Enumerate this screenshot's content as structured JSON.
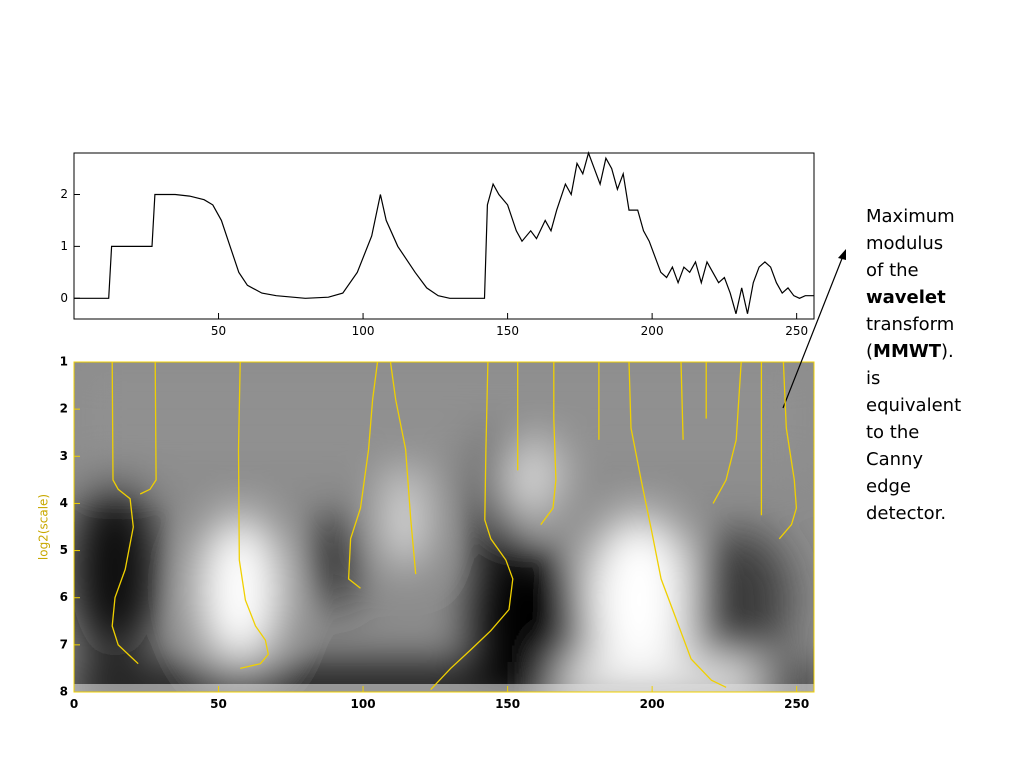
{
  "chart_data": [
    {
      "type": "line",
      "color": "#000000",
      "x": [
        0,
        12,
        13,
        27,
        28,
        35,
        40,
        45,
        48,
        51,
        54,
        57,
        60,
        65,
        70,
        80,
        88,
        93,
        98,
        103,
        106,
        108,
        112,
        118,
        122,
        126,
        130,
        142,
        143,
        145,
        147,
        150,
        153,
        155,
        158,
        160,
        163,
        165,
        167,
        170,
        172,
        174,
        176,
        178,
        180,
        182,
        184,
        186,
        188,
        190,
        192,
        195,
        197,
        199,
        201,
        203,
        205,
        207,
        209,
        211,
        213,
        215,
        217,
        219,
        221,
        223,
        225,
        227,
        229,
        231,
        233,
        235,
        237,
        239,
        241,
        243,
        245,
        247,
        249,
        251,
        253,
        256
      ],
      "values": [
        0,
        0,
        1,
        1,
        2,
        2,
        1.97,
        1.9,
        1.8,
        1.5,
        1.0,
        0.5,
        0.25,
        0.1,
        0.05,
        0,
        0.02,
        0.1,
        0.5,
        1.2,
        2.0,
        1.5,
        1.0,
        0.5,
        0.2,
        0.05,
        0,
        0,
        1.8,
        2.2,
        2.0,
        1.8,
        1.3,
        1.1,
        1.3,
        1.15,
        1.5,
        1.3,
        1.7,
        2.2,
        2.0,
        2.6,
        2.4,
        2.8,
        2.5,
        2.2,
        2.7,
        2.5,
        2.1,
        2.4,
        1.7,
        1.7,
        1.3,
        1.1,
        0.8,
        0.5,
        0.4,
        0.6,
        0.3,
        0.6,
        0.5,
        0.7,
        0.3,
        0.7,
        0.5,
        0.3,
        0.4,
        0.1,
        -0.3,
        0.2,
        -0.3,
        0.3,
        0.6,
        0.7,
        0.6,
        0.3,
        0.1,
        0.2,
        0.05,
        0,
        0.05,
        0.05
      ],
      "xlim": [
        0,
        256
      ],
      "xticks": [
        50,
        100,
        150,
        200,
        250
      ],
      "ylim": [
        -0.4,
        2.8
      ],
      "yticks": [
        0,
        1,
        2
      ]
    },
    {
      "type": "maxima",
      "ylabel": "log2(scale)",
      "yreverse": true,
      "color": "#f0d000",
      "xlim": [
        0,
        256
      ],
      "xticks": [
        0,
        50,
        100,
        150,
        200,
        250
      ],
      "ylim": [
        1,
        8
      ],
      "yticks": [
        1,
        2,
        3,
        4,
        5,
        6,
        7,
        8
      ],
      "series": [
        {
          "x": [
            13.2,
            13.5,
            15.3,
            19.4,
            20.5,
            17.7,
            14.2,
            13.2,
            15.3,
            22.2
          ],
          "values": [
            1,
            3.5,
            3.7,
            3.9,
            4.5,
            5.4,
            6.0,
            6.6,
            7.0,
            7.4
          ]
        },
        {
          "x": [
            28.1,
            28.4,
            26.3,
            22.9
          ],
          "values": [
            1,
            3.5,
            3.7,
            3.8
          ]
        },
        {
          "x": [
            57.5,
            56.9,
            57.2,
            59.3,
            62.8,
            66.2,
            67.2,
            64.5,
            57.5
          ],
          "values": [
            1,
            2.85,
            5.2,
            6.05,
            6.6,
            6.9,
            7.2,
            7.4,
            7.5
          ]
        },
        {
          "x": [
            105,
            103.3,
            101.9,
            99.1,
            95.7,
            95,
            99.1
          ],
          "values": [
            1,
            1.8,
            2.85,
            4.1,
            4.75,
            5.6,
            5.8
          ]
        },
        {
          "x": [
            109.5,
            111.3,
            114.7,
            116.5,
            118.2
          ],
          "values": [
            1,
            1.8,
            2.85,
            4.35,
            5.5
          ]
        },
        {
          "x": [
            143.2,
            142.5,
            142.1,
            144.2,
            149.4,
            151.8,
            150.5,
            144.2,
            137.3,
            130.3,
            123.4
          ],
          "values": [
            1,
            2.85,
            4.35,
            4.75,
            5.2,
            5.6,
            6.25,
            6.7,
            7.1,
            7.5,
            7.95
          ]
        },
        {
          "x": [
            153.5,
            153.5
          ],
          "values": [
            1,
            3.3
          ]
        },
        {
          "x": [
            166,
            166,
            166.7,
            165.7,
            161.5
          ],
          "values": [
            1,
            2.2,
            3.5,
            4.1,
            4.45
          ]
        },
        {
          "x": [
            181.6,
            181.6
          ],
          "values": [
            1,
            2.65
          ]
        },
        {
          "x": [
            192,
            192.7,
            196.2,
            199.7,
            203.1,
            208.3,
            213.5,
            220.5,
            225.6
          ],
          "values": [
            1,
            2.4,
            3.5,
            4.55,
            5.6,
            6.45,
            7.3,
            7.75,
            7.9
          ]
        },
        {
          "x": [
            210,
            210.7
          ],
          "values": [
            1,
            2.65
          ]
        },
        {
          "x": [
            218.7,
            218.7
          ],
          "values": [
            1,
            2.2
          ]
        },
        {
          "x": [
            230.8,
            229.1,
            225.6,
            221.1
          ],
          "values": [
            1,
            2.65,
            3.5,
            4.0
          ]
        },
        {
          "x": [
            237.8,
            237.8
          ],
          "values": [
            1,
            4.25
          ]
        },
        {
          "x": [
            245.4,
            246.4,
            249.2,
            249.9,
            248.2,
            244
          ],
          "values": [
            1,
            2.4,
            3.5,
            4.1,
            4.45,
            4.75
          ]
        }
      ]
    }
  ],
  "annotation": [
    "Maximum",
    "modulus",
    "of the",
    "wavelet",
    "transform",
    "(",
    "MMWT",
    ").",
    "is",
    "equivalent",
    "to the",
    "Canny",
    "edge",
    "detector."
  ]
}
